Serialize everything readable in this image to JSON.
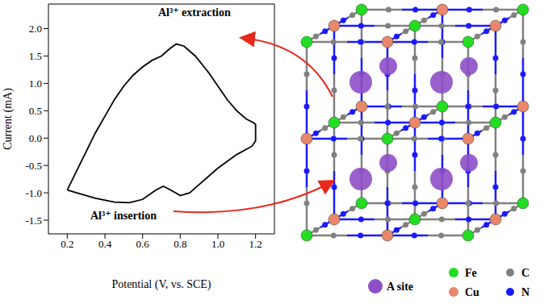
{
  "chart_data": {
    "type": "line",
    "x_label": "Potential (V, vs. SCE)",
    "y_label": "Current (mA)",
    "x": [
      0.2,
      0.25,
      0.3,
      0.35,
      0.4,
      0.45,
      0.5,
      0.55,
      0.6,
      0.65,
      0.7,
      0.75,
      0.78,
      0.82,
      0.88,
      0.95,
      1.0,
      1.05,
      1.1,
      1.15,
      1.19,
      1.2,
      1.2,
      1.18,
      1.1,
      1.0,
      0.9,
      0.85,
      0.8,
      0.75,
      0.71,
      0.67,
      0.6,
      0.53,
      0.45,
      0.35,
      0.25,
      0.2
    ],
    "values": [
      -0.95,
      -0.6,
      -0.25,
      0.1,
      0.4,
      0.7,
      0.95,
      1.15,
      1.3,
      1.42,
      1.5,
      1.65,
      1.72,
      1.68,
      1.5,
      1.2,
      0.95,
      0.7,
      0.5,
      0.35,
      0.28,
      0.25,
      -0.05,
      -0.15,
      -0.3,
      -0.55,
      -0.85,
      -1.0,
      -1.05,
      -0.95,
      -0.88,
      -0.95,
      -1.12,
      -1.18,
      -1.17,
      -1.1,
      -1.0,
      -0.95
    ],
    "color": "#000000",
    "xlim": [
      0.1,
      1.3
    ],
    "xticks": [
      0.2,
      0.4,
      0.6,
      0.8,
      {
        "value": 1.0,
        "label": "1.0"
      },
      1.2
    ],
    "ylim": [
      -1.75,
      2.45
    ],
    "yticks": [
      -1.5,
      {
        "value": -1.0,
        "label": "-1.0"
      },
      -0.5,
      {
        "value": 0,
        "label": "0.0"
      },
      0.5,
      {
        "value": 1.0,
        "label": "1.0"
      },
      1.5,
      {
        "value": 2.0,
        "label": "2.0"
      }
    ],
    "annotations": [
      "Al³⁺ extraction",
      "Al³⁺ insertion"
    ]
  },
  "diagram": {
    "legend": [
      {
        "label": "A site",
        "color": "#8e4fc8"
      },
      {
        "label": "Fe",
        "color": "#22dd22"
      },
      {
        "label": "Cu",
        "color": "#e8876a"
      },
      {
        "label": "C",
        "color": "#808080"
      },
      {
        "label": "N",
        "color": "#1a1aff"
      }
    ]
  }
}
